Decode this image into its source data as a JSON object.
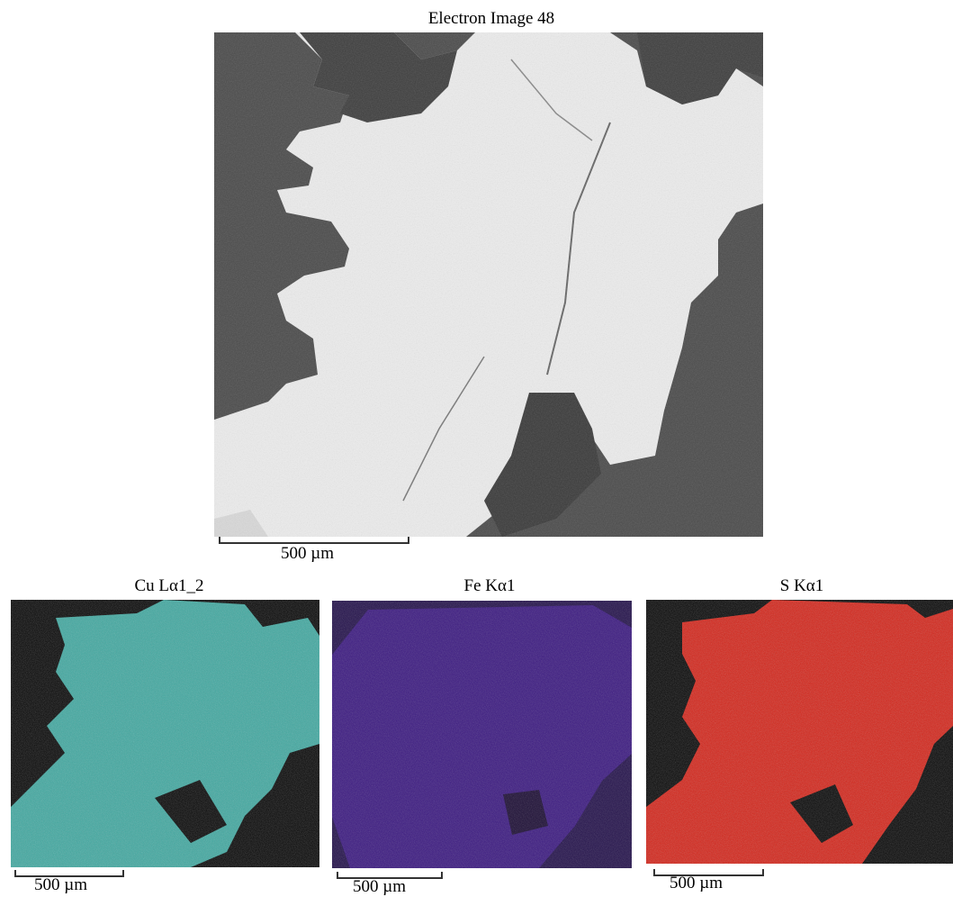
{
  "main_image": {
    "title": "Electron Image 48",
    "scale_label": "500 µm"
  },
  "maps": [
    {
      "title": "Cu Lα1_2",
      "scale_label": "500 µm",
      "color": "#3fa8a0"
    },
    {
      "title": "Fe Kα1",
      "scale_label": "500 µm",
      "color": "#3a1880"
    },
    {
      "title": "S Kα1",
      "scale_label": "500 µm",
      "color": "#d42318"
    }
  ],
  "colors": {
    "background": "#ffffff",
    "bright_phase": "#ececec",
    "dark_phase": "#4a4a4a",
    "map_background": "#050505"
  }
}
